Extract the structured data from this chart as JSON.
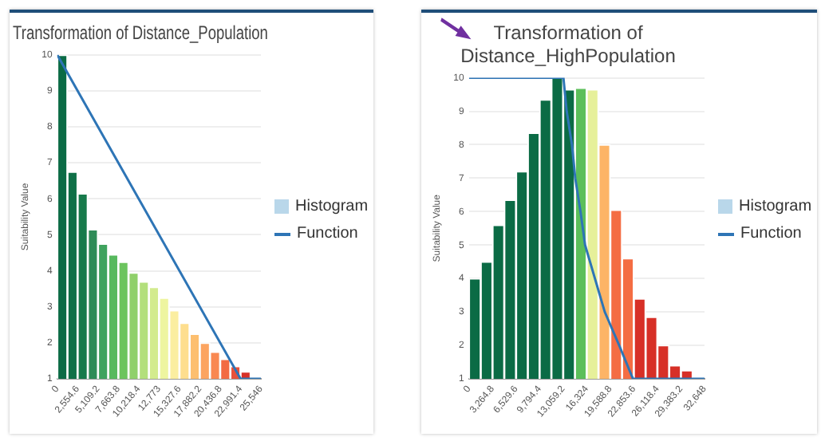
{
  "chart_data": [
    {
      "type": "histogram",
      "title": "Transformation of Distance_Population",
      "ylabel": "Suitability Value",
      "xlim": [
        0,
        25546
      ],
      "xticks": [
        0,
        {
          "value": 2554.6,
          "label": "2,554.6"
        },
        {
          "value": 5109.2,
          "label": "5,109.2"
        },
        {
          "value": 7663.8,
          "label": "7,663.8"
        },
        {
          "value": 10218.4,
          "label": "10,218.4"
        },
        {
          "value": 12773,
          "label": "12,773"
        },
        {
          "value": 15327.6,
          "label": "15,327.6"
        },
        {
          "value": 17882.2,
          "label": "17,882.2"
        },
        {
          "value": 20436.8,
          "label": "20,436.8"
        },
        {
          "value": 22991.4,
          "label": "22,991.4"
        },
        {
          "value": 25546,
          "label": "25,546"
        }
      ],
      "ylim": [
        1,
        10
      ],
      "yticks": [
        1,
        2,
        3,
        4,
        5,
        6,
        7,
        8,
        9,
        10
      ],
      "grid": "y",
      "legend": "right",
      "bins": [
        0,
        1277.3,
        2554.6,
        3831.9,
        5109.2,
        6386.5,
        7663.8,
        8941.1,
        10218.4,
        11495.7,
        12773,
        14050.3,
        15327.6,
        16604.9,
        17882.2,
        19159.5,
        20436.8,
        21714.1,
        22991.4,
        24268.7,
        25546
      ],
      "series": [
        {
          "name": "Histogram",
          "type": "histogram",
          "color": "#b9d7ea",
          "colors": [
            "#0b6b45",
            "#0f7047",
            "#177a4b",
            "#2e8b57",
            "#3fa35e",
            "#57b95e",
            "#6cc45e",
            "#8fd06a",
            "#b3df7c",
            "#d3eb8e",
            "#eef5a0",
            "#fbeea0",
            "#fede8e",
            "#fdbf6f",
            "#fca460",
            "#f98852",
            "#f26b43",
            "#e8523a",
            "#d73027",
            "#c82525"
          ],
          "values": [
            10,
            6.75,
            6.15,
            5.15,
            4.75,
            4.45,
            4.25,
            3.95,
            3.7,
            3.55,
            3.25,
            2.9,
            2.55,
            2.25,
            2,
            1.75,
            1.55,
            1.35,
            1.2,
            1
          ]
        },
        {
          "name": "Function",
          "type": "line",
          "color": "#2e75b6",
          "x": [
            0,
            23000,
            25546
          ],
          "values": [
            10,
            1,
            1
          ]
        }
      ]
    },
    {
      "type": "histogram",
      "title": "Transformation of Distance_HighPopulation",
      "ylabel": "Suitability Value",
      "xlim": [
        0,
        32648
      ],
      "xticks": [
        0,
        {
          "value": 3264.8,
          "label": "3,264.8"
        },
        {
          "value": 6529.6,
          "label": "6,529.6"
        },
        {
          "value": 9794.4,
          "label": "9,794.4"
        },
        {
          "value": 13059.2,
          "label": "13,059.2"
        },
        {
          "value": 16324,
          "label": "16,324"
        },
        {
          "value": 19588.8,
          "label": "19,588.8"
        },
        {
          "value": 22853.6,
          "label": "22,853.6"
        },
        {
          "value": 26118.4,
          "label": "26,118.4"
        },
        {
          "value": 29383.2,
          "label": "29,383.2"
        },
        {
          "value": 32648,
          "label": "32,648"
        }
      ],
      "ylim": [
        1,
        10
      ],
      "yticks": [
        1,
        2,
        3,
        4,
        5,
        6,
        7,
        8,
        9,
        10
      ],
      "grid": "y",
      "legend": "right",
      "bins": [
        0,
        1632.4,
        3264.8,
        4897.2,
        6529.6,
        8162,
        9794.4,
        11426.8,
        13059.2,
        14691.6,
        16324,
        17956.4,
        19588.8,
        21221.2,
        22853.6,
        24486,
        26118.4,
        27750.8,
        29383.2,
        31015.6,
        32648
      ],
      "series": [
        {
          "name": "Histogram",
          "type": "histogram",
          "color": "#b9d7ea",
          "colors": [
            "#0b6b45",
            "#0b6b45",
            "#0b6b45",
            "#0b6b45",
            "#0b6b45",
            "#0b6b45",
            "#0b6b45",
            "#0b6b45",
            "#0b6b45",
            "#5cbf5a",
            "#e6f09a",
            "#fdb466",
            "#f46d43",
            "#f46d43",
            "#d73027",
            "#d73027",
            "#d73027",
            "#d73027",
            "#d73027",
            "#d73027"
          ],
          "values": [
            4,
            4.5,
            5.6,
            6.35,
            7.2,
            8.35,
            9.35,
            10,
            9.65,
            9.7,
            9.65,
            8,
            6.05,
            4.6,
            3.4,
            2.85,
            2,
            1.4,
            1.25,
            1
          ]
        },
        {
          "name": "Function",
          "type": "line",
          "color": "#2e75b6",
          "x": [
            0,
            13096,
            13550,
            14278,
            14733,
            15460,
            16097,
            18825,
            20826,
            22735,
            32648
          ],
          "values": [
            10,
            10,
            9,
            8,
            7,
            6,
            5,
            3,
            2,
            1,
            1
          ]
        }
      ]
    }
  ]
}
